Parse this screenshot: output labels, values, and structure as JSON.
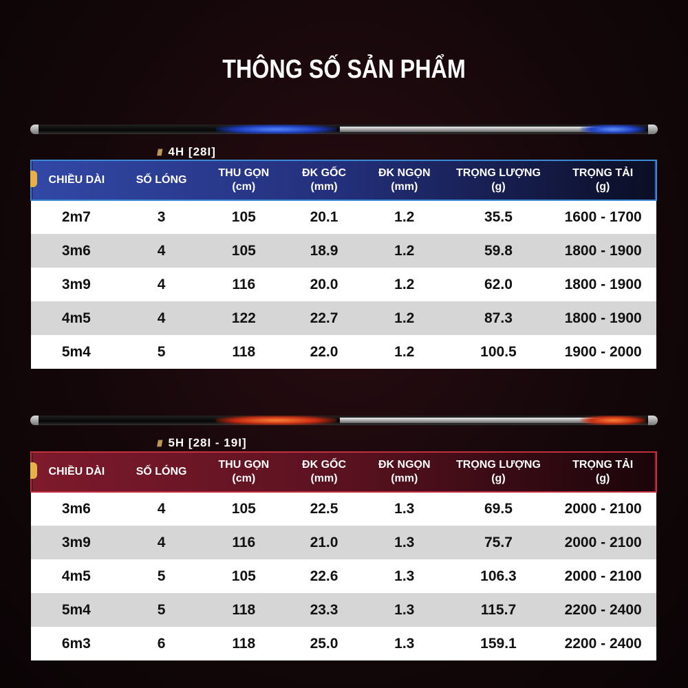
{
  "title": "THÔNG SỐ SẢN PHẨM",
  "colors": {
    "blue_header": "#3248a6",
    "red_header": "#7e1a2c",
    "row_alt": "#d6d6d6"
  },
  "headers": [
    "CHIỀU DÀI",
    "SỐ LÓNG",
    "THU GỌN (cm)",
    "ĐK GỐC (mm)",
    "ĐK NGỌN (mm)",
    "TRỌNG LƯỢNG (g)",
    "TRỌNG TẢI (g)"
  ],
  "tables": [
    {
      "label": "4H [28I]",
      "rows": [
        [
          "2m7",
          "3",
          "105",
          "20.1",
          "1.2",
          "35.5",
          "1600 - 1700"
        ],
        [
          "3m6",
          "4",
          "105",
          "18.9",
          "1.2",
          "59.8",
          "1800 - 1900"
        ],
        [
          "3m9",
          "4",
          "116",
          "20.0",
          "1.2",
          "62.0",
          "1800 - 1900"
        ],
        [
          "4m5",
          "4",
          "122",
          "22.7",
          "1.2",
          "87.3",
          "1800 - 1900"
        ],
        [
          "5m4",
          "5",
          "118",
          "22.0",
          "1.2",
          "100.5",
          "1900 - 2000"
        ]
      ]
    },
    {
      "label": "5H [28I - 19I]",
      "rows": [
        [
          "3m6",
          "4",
          "105",
          "22.5",
          "1.3",
          "69.5",
          "2000 - 2100"
        ],
        [
          "3m9",
          "4",
          "116",
          "21.0",
          "1.3",
          "75.7",
          "2000 - 2100"
        ],
        [
          "4m5",
          "5",
          "105",
          "22.6",
          "1.3",
          "106.3",
          "2000 - 2100"
        ],
        [
          "5m4",
          "5",
          "118",
          "23.3",
          "1.3",
          "115.7",
          "2200 - 2400"
        ],
        [
          "6m3",
          "6",
          "118",
          "25.0",
          "1.3",
          "159.1",
          "2200 - 2400"
        ]
      ]
    }
  ]
}
